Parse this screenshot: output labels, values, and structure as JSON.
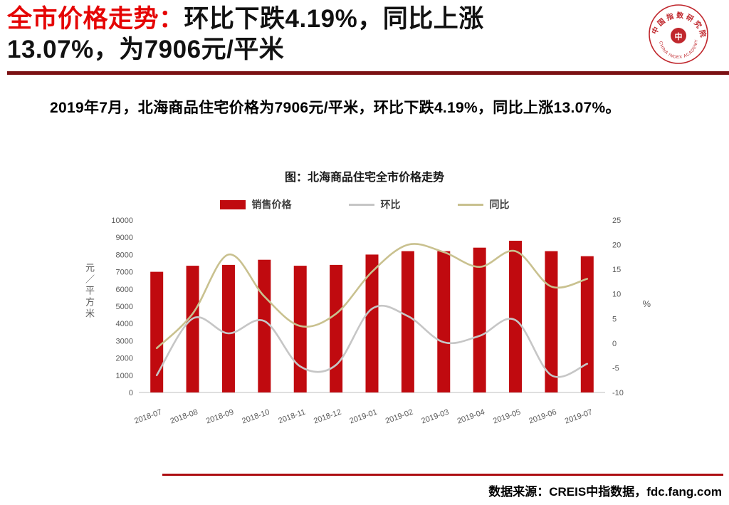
{
  "header": {
    "title_prefix": "全市价格走势：",
    "title_black_1": "环比下跌4.19%，同比上涨",
    "title_black_2": "13.07%，为7906元/平米",
    "logo": {
      "center_glyph": "中",
      "ring_text_top": "中国指数研究院",
      "ring_text_bottom": "CHINA INDEX ACADEMY"
    }
  },
  "summary": "2019年7月，北海商品住宅价格为7906元/平米，环比下跌4.19%，同比上涨13.07%。",
  "chart": {
    "title": "图：北海商品住宅全市价格走势",
    "left_axis_label": "元／平方米",
    "right_axis_label": "%"
  },
  "chart_data": {
    "type": "bar",
    "title": "图：北海商品住宅全市价格走势",
    "categories": [
      "2018-07",
      "2018-08",
      "2018-09",
      "2018-10",
      "2018-11",
      "2018-12",
      "2019-01",
      "2019-02",
      "2019-03",
      "2019-04",
      "2019-05",
      "2019-06",
      "2019-07"
    ],
    "series": [
      {
        "name": "销售价格",
        "type": "bar",
        "axis": "left",
        "color": "#c00a0f",
        "values": [
          7000,
          7350,
          7400,
          7700,
          7350,
          7400,
          8000,
          8200,
          8200,
          8400,
          8800,
          8200,
          7906
        ]
      },
      {
        "name": "环比",
        "type": "line",
        "axis": "right",
        "color": "#c6c6c6",
        "values": [
          -6.5,
          5.0,
          2.0,
          4.5,
          -4.7,
          -4.4,
          7.0,
          5.5,
          0.2,
          1.5,
          4.7,
          -6.5,
          -4.19
        ]
      },
      {
        "name": "同比",
        "type": "line",
        "axis": "right",
        "color": "#c9c18f",
        "values": [
          -1.0,
          6.0,
          18.0,
          9.5,
          3.5,
          6.0,
          14.5,
          20.0,
          18.5,
          15.5,
          18.7,
          11.5,
          13.07
        ]
      }
    ],
    "left_axis": {
      "min": 0,
      "max": 10000,
      "step": 1000,
      "label": "元／平方米"
    },
    "right_axis": {
      "min": -10,
      "max": 25,
      "step": 5,
      "label": "%"
    },
    "grid": false,
    "legend_position": "top",
    "xlabel": "",
    "ylabel": "元／平方米"
  },
  "footer": {
    "source": "数据来源：CREIS中指数据，fdc.fang.com"
  }
}
